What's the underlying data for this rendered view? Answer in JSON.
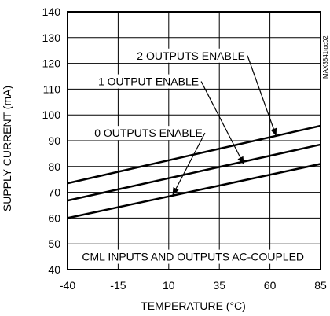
{
  "chart_data": {
    "type": "line",
    "title": "",
    "xlabel": "TEMPERATURE (°C)",
    "ylabel": "SUPPLY CURRENT (mA)",
    "xlim": [
      -40,
      85
    ],
    "ylim": [
      40,
      140
    ],
    "xticks": [
      -40,
      -15,
      10,
      35,
      60,
      85
    ],
    "yticks": [
      40,
      50,
      60,
      70,
      80,
      90,
      100,
      110,
      120,
      130,
      140
    ],
    "grid": true,
    "series": [
      {
        "name": "2 OUTPUTS ENABLE",
        "x": [
          -40,
          85
        ],
        "y": [
          73.5,
          95.8
        ]
      },
      {
        "name": "1 OUTPUT ENABLE",
        "x": [
          -40,
          85
        ],
        "y": [
          66.8,
          88.5
        ]
      },
      {
        "name": "0 OUTPUTS ENABLE",
        "x": [
          -40,
          85
        ],
        "y": [
          60.0,
          81.0
        ]
      }
    ],
    "annotations": [
      {
        "text": "2 OUTPUTS ENABLE",
        "x": 21,
        "y": 123,
        "arrow_to": [
          63,
          92
        ]
      },
      {
        "text": "1 OUTPUT ENABLE",
        "x": 0,
        "y": 113,
        "arrow_to": [
          47,
          81
        ]
      },
      {
        "text": "0 OUTPUTS ENABLE",
        "x": 0,
        "y": 93,
        "arrow_to": [
          12,
          69
        ]
      },
      {
        "text": "CML INPUTS AND OUTPUTS AC-COUPLED",
        "x": 22,
        "y": 45
      }
    ],
    "watermark": "MAX3841toc02"
  }
}
